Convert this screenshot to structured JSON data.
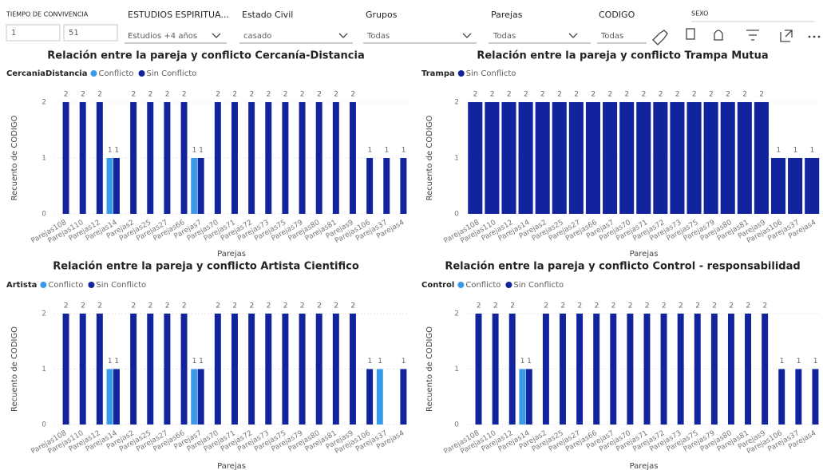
{
  "slicers": [
    {
      "label": "TIEMPO DE CONVIVENCIA",
      "from": 1,
      "to": 51
    },
    {
      "label": "ESTUDIOS ESPIRITUA...",
      "value": "Estudios +4 años"
    },
    {
      "label": "Estado Civil",
      "value": "casado"
    },
    {
      "label": "Grupos",
      "value": "Todas"
    },
    {
      "label": "Parejas",
      "value": "Todas"
    },
    {
      "label": "CODIGO",
      "value": "Todas"
    },
    {
      "label": "SEXO"
    }
  ],
  "chart_data": [
    {
      "type": "bar",
      "title": "Relación entre la pareja y conflicto Cercanía-Distancia",
      "legend_title": "CercaniaDistancia",
      "x_label": "Parejas",
      "y_label": "Recuento de CODIGO",
      "categories": [
        "Parejas108",
        "Parejas110",
        "Parejas12",
        "Parejas14",
        "Parejas2",
        "Parejas25",
        "Parejas27",
        "Parejas66",
        "Parejas7",
        "Parejas70",
        "Parejas71",
        "Parejas72",
        "Parejas73",
        "Parejas75",
        "Parejas79",
        "Parejas80",
        "Parejas81",
        "Parejas9",
        "Parejas106",
        "Parejas37",
        "Parejas4"
      ],
      "series": [
        {
          "name": "Conflicto",
          "color": "#3a9ae8",
          "values": [
            null,
            null,
            null,
            1,
            null,
            null,
            null,
            null,
            1,
            null,
            null,
            null,
            null,
            null,
            null,
            null,
            null,
            null,
            null,
            null,
            null
          ]
        },
        {
          "name": "Sin Conflicto",
          "color": "#12239e",
          "values": [
            2,
            2,
            2,
            1,
            2,
            2,
            2,
            2,
            1,
            2,
            2,
            2,
            2,
            2,
            2,
            2,
            2,
            2,
            1,
            1,
            1
          ]
        }
      ],
      "ylim": [
        0,
        2
      ],
      "yticks": [
        0,
        1,
        2
      ],
      "grid": true
    },
    {
      "type": "bar",
      "title": "Relación entre la pareja y conflicto Trampa Mutua",
      "legend_title": "Trampa",
      "x_label": "Parejas",
      "y_label": "Recuento de CODIGO",
      "categories": [
        "Parejas108",
        "Parejas110",
        "Parejas12",
        "Parejas14",
        "Parejas2",
        "Parejas25",
        "Parejas27",
        "Parejas66",
        "Parejas7",
        "Parejas70",
        "Parejas71",
        "Parejas72",
        "Parejas73",
        "Parejas75",
        "Parejas79",
        "Parejas80",
        "Parejas81",
        "Parejas9",
        "Parejas106",
        "Parejas37",
        "Parejas4"
      ],
      "series": [
        {
          "name": "Sin Conflicto",
          "color": "#12239e",
          "values": [
            2,
            2,
            2,
            2,
            2,
            2,
            2,
            2,
            2,
            2,
            2,
            2,
            2,
            2,
            2,
            2,
            2,
            2,
            1,
            1,
            1
          ]
        }
      ],
      "ylim": [
        0,
        2
      ],
      "yticks": [
        0,
        1,
        2
      ],
      "grid": true
    },
    {
      "type": "bar",
      "title": "Relación entre la pareja y conflicto Artista Cientifico",
      "legend_title": "Artista",
      "x_label": "Parejas",
      "y_label": "Recuento de CODIGO",
      "categories": [
        "Parejas108",
        "Parejas110",
        "Parejas12",
        "Parejas14",
        "Parejas2",
        "Parejas25",
        "Parejas27",
        "Parejas66",
        "Parejas7",
        "Parejas70",
        "Parejas71",
        "Parejas72",
        "Parejas73",
        "Parejas75",
        "Parejas79",
        "Parejas80",
        "Parejas81",
        "Parejas9",
        "Parejas106",
        "Parejas37",
        "Parejas4"
      ],
      "series": [
        {
          "name": "Conflicto",
          "color": "#3a9ae8",
          "values": [
            null,
            null,
            null,
            1,
            null,
            null,
            null,
            null,
            1,
            null,
            null,
            null,
            null,
            null,
            null,
            null,
            null,
            null,
            null,
            1,
            null
          ]
        },
        {
          "name": "Sin Conflicto",
          "color": "#12239e",
          "values": [
            2,
            2,
            2,
            1,
            2,
            2,
            2,
            2,
            1,
            2,
            2,
            2,
            2,
            2,
            2,
            2,
            2,
            2,
            1,
            null,
            1
          ]
        }
      ],
      "ylim": [
        0,
        2
      ],
      "yticks": [
        0,
        1,
        2
      ],
      "grid": true
    },
    {
      "type": "bar",
      "title": "Relación entre la pareja y conflicto Control - responsabilidad",
      "legend_title": "Control",
      "x_label": "Parejas",
      "y_label": "Recuento de CODIGO",
      "categories": [
        "Parejas108",
        "Parejas110",
        "Parejas12",
        "Parejas14",
        "Parejas2",
        "Parejas25",
        "Parejas27",
        "Parejas66",
        "Parejas7",
        "Parejas70",
        "Parejas71",
        "Parejas72",
        "Parejas73",
        "Parejas75",
        "Parejas79",
        "Parejas80",
        "Parejas81",
        "Parejas9",
        "Parejas106",
        "Parejas37",
        "Parejas4"
      ],
      "series": [
        {
          "name": "Conflicto",
          "color": "#3a9ae8",
          "values": [
            null,
            null,
            null,
            1,
            null,
            null,
            null,
            null,
            null,
            null,
            null,
            null,
            null,
            null,
            null,
            null,
            null,
            null,
            null,
            null,
            null
          ]
        },
        {
          "name": "Sin Conflicto",
          "color": "#12239e",
          "values": [
            2,
            2,
            2,
            1,
            2,
            2,
            2,
            2,
            2,
            2,
            2,
            2,
            2,
            2,
            2,
            2,
            2,
            2,
            1,
            1,
            1
          ]
        }
      ],
      "ylim": [
        0,
        2
      ],
      "yticks": [
        0,
        1,
        2
      ],
      "grid": true
    }
  ]
}
